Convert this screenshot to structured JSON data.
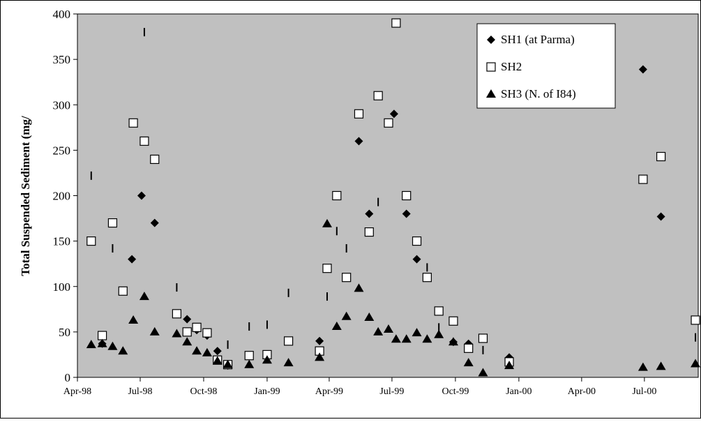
{
  "chart_data": {
    "type": "scatter",
    "title": "",
    "xlabel": "",
    "ylabel": "Total Suspended Sediment (mg/",
    "ylim": [
      0,
      400
    ],
    "xlim": [
      "1998-04-01",
      "2000-09-17"
    ],
    "y_ticks": [
      0,
      50,
      100,
      150,
      200,
      250,
      300,
      350,
      400
    ],
    "x_ticks": [
      {
        "date": "1998-04-01",
        "label": "Apr-98"
      },
      {
        "date": "1998-07-01",
        "label": "Jul-98"
      },
      {
        "date": "1998-10-01",
        "label": "Oct-98"
      },
      {
        "date": "1999-01-01",
        "label": "Jan-99"
      },
      {
        "date": "1999-04-01",
        "label": "Apr-99"
      },
      {
        "date": "1999-07-01",
        "label": "Jul-99"
      },
      {
        "date": "1999-10-01",
        "label": "Oct-99"
      },
      {
        "date": "2000-01-01",
        "label": "Jan-00"
      },
      {
        "date": "2000-04-01",
        "label": "Apr-00"
      },
      {
        "date": "2000-07-01",
        "label": "Jul-00"
      }
    ],
    "grid": false,
    "plot_background": "#c0c0c0",
    "legend_position": "top-right",
    "series": [
      {
        "name": "SH1 (at Parma)",
        "marker": "diamond",
        "color": "#000000",
        "points": [
          {
            "x": "1998-05-07",
            "y": 37
          },
          {
            "x": "1998-06-19",
            "y": 130
          },
          {
            "x": "1998-07-03",
            "y": 200
          },
          {
            "x": "1998-07-22",
            "y": 170
          },
          {
            "x": "1998-09-07",
            "y": 64
          },
          {
            "x": "1998-09-21",
            "y": 52
          },
          {
            "x": "1998-10-06",
            "y": 46
          },
          {
            "x": "1998-10-21",
            "y": 29
          },
          {
            "x": "1998-11-05",
            "y": 13
          },
          {
            "x": "1999-03-18",
            "y": 40
          },
          {
            "x": "1999-05-14",
            "y": 260
          },
          {
            "x": "1999-05-29",
            "y": 180
          },
          {
            "x": "1999-07-04",
            "y": 290
          },
          {
            "x": "1999-07-22",
            "y": 180
          },
          {
            "x": "1999-08-06",
            "y": 130
          },
          {
            "x": "1999-09-28",
            "y": 39
          },
          {
            "x": "1999-10-20",
            "y": 37
          },
          {
            "x": "1999-12-18",
            "y": 22
          },
          {
            "x": "2000-06-29",
            "y": 339
          },
          {
            "x": "2000-07-25",
            "y": 177
          }
        ]
      },
      {
        "name": "SH2",
        "marker": "square",
        "color": "#000000",
        "points": [
          {
            "x": "1998-04-21",
            "y": 150
          },
          {
            "x": "1998-05-07",
            "y": 46
          },
          {
            "x": "1998-05-22",
            "y": 170
          },
          {
            "x": "1998-06-06",
            "y": 95
          },
          {
            "x": "1998-06-21",
            "y": 280
          },
          {
            "x": "1998-07-07",
            "y": 260
          },
          {
            "x": "1998-07-22",
            "y": 240
          },
          {
            "x": "1998-08-23",
            "y": 70
          },
          {
            "x": "1998-09-07",
            "y": 50
          },
          {
            "x": "1998-09-21",
            "y": 55
          },
          {
            "x": "1998-10-06",
            "y": 49
          },
          {
            "x": "1998-10-21",
            "y": 19
          },
          {
            "x": "1998-11-05",
            "y": 14
          },
          {
            "x": "1998-12-06",
            "y": 24
          },
          {
            "x": "1999-01-01",
            "y": 25
          },
          {
            "x": "1999-02-01",
            "y": 40
          },
          {
            "x": "1999-03-18",
            "y": 29
          },
          {
            "x": "1999-03-29",
            "y": 120
          },
          {
            "x": "1999-04-12",
            "y": 200
          },
          {
            "x": "1999-04-26",
            "y": 110
          },
          {
            "x": "1999-05-14",
            "y": 290
          },
          {
            "x": "1999-05-29",
            "y": 160
          },
          {
            "x": "1999-06-11",
            "y": 310
          },
          {
            "x": "1999-06-26",
            "y": 280
          },
          {
            "x": "1999-07-07",
            "y": 390
          },
          {
            "x": "1999-07-22",
            "y": 200
          },
          {
            "x": "1999-08-06",
            "y": 150
          },
          {
            "x": "1999-08-21",
            "y": 110
          },
          {
            "x": "1999-09-07",
            "y": 73
          },
          {
            "x": "1999-09-28",
            "y": 62
          },
          {
            "x": "1999-10-20",
            "y": 32
          },
          {
            "x": "1999-11-10",
            "y": 43
          },
          {
            "x": "1999-12-18",
            "y": 17
          },
          {
            "x": "2000-06-29",
            "y": 218
          },
          {
            "x": "2000-07-25",
            "y": 243
          },
          {
            "x": "2000-09-13",
            "y": 63
          }
        ]
      },
      {
        "name": "SH3 (N. of I84)",
        "marker": "triangle",
        "color": "#000000",
        "points": [
          {
            "x": "1998-04-21",
            "y": 36
          },
          {
            "x": "1998-05-07",
            "y": 37
          },
          {
            "x": "1998-05-22",
            "y": 34
          },
          {
            "x": "1998-06-06",
            "y": 29
          },
          {
            "x": "1998-06-21",
            "y": 63
          },
          {
            "x": "1998-07-07",
            "y": 89
          },
          {
            "x": "1998-07-22",
            "y": 50
          },
          {
            "x": "1998-08-23",
            "y": 48
          },
          {
            "x": "1998-09-07",
            "y": 39
          },
          {
            "x": "1998-09-21",
            "y": 29
          },
          {
            "x": "1998-10-06",
            "y": 27
          },
          {
            "x": "1998-10-21",
            "y": 18
          },
          {
            "x": "1998-11-05",
            "y": 14
          },
          {
            "x": "1998-12-06",
            "y": 14
          },
          {
            "x": "1999-01-01",
            "y": 19
          },
          {
            "x": "1999-02-01",
            "y": 16
          },
          {
            "x": "1999-03-18",
            "y": 22
          },
          {
            "x": "1999-03-29",
            "y": 169
          },
          {
            "x": "1999-04-12",
            "y": 56
          },
          {
            "x": "1999-04-26",
            "y": 67
          },
          {
            "x": "1999-05-14",
            "y": 98
          },
          {
            "x": "1999-05-29",
            "y": 66
          },
          {
            "x": "1999-06-11",
            "y": 50
          },
          {
            "x": "1999-06-26",
            "y": 53
          },
          {
            "x": "1999-07-07",
            "y": 42
          },
          {
            "x": "1999-07-22",
            "y": 42
          },
          {
            "x": "1999-08-06",
            "y": 49
          },
          {
            "x": "1999-08-21",
            "y": 42
          },
          {
            "x": "1999-09-07",
            "y": 47
          },
          {
            "x": "1999-09-28",
            "y": 39
          },
          {
            "x": "1999-10-20",
            "y": 16
          },
          {
            "x": "1999-11-10",
            "y": 5
          },
          {
            "x": "1999-12-18",
            "y": 13
          },
          {
            "x": "2000-06-29",
            "y": 11
          },
          {
            "x": "2000-07-25",
            "y": 12
          },
          {
            "x": "2000-09-13",
            "y": 15
          }
        ]
      }
    ],
    "extra_marks": {
      "description_marker": "thin vertical tick",
      "points": [
        {
          "x": "1998-04-21",
          "y": 222
        },
        {
          "x": "1998-05-22",
          "y": 142
        },
        {
          "x": "1998-07-07",
          "y": 380
        },
        {
          "x": "1998-08-23",
          "y": 99
        },
        {
          "x": "1998-11-05",
          "y": 36
        },
        {
          "x": "1998-12-06",
          "y": 56
        },
        {
          "x": "1999-01-01",
          "y": 58
        },
        {
          "x": "1999-02-01",
          "y": 93
        },
        {
          "x": "1999-03-29",
          "y": 89
        },
        {
          "x": "1999-04-12",
          "y": 161
        },
        {
          "x": "1999-04-26",
          "y": 142
        },
        {
          "x": "1999-06-11",
          "y": 193
        },
        {
          "x": "1999-08-21",
          "y": 121
        },
        {
          "x": "1999-09-07",
          "y": 55
        },
        {
          "x": "1999-11-10",
          "y": 30
        },
        {
          "x": "2000-09-13",
          "y": 44
        }
      ]
    }
  }
}
